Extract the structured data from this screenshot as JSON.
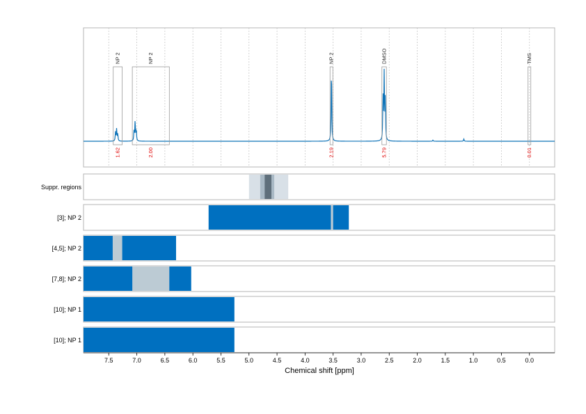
{
  "chart_data": {
    "type": "nmr_spectrum_with_region_tracks",
    "xlabel": "Chemical shift [ppm]",
    "xlim": [
      7.95,
      -0.45
    ],
    "xticks": [
      7.5,
      7.0,
      6.5,
      6.0,
      5.5,
      5.0,
      4.5,
      4.0,
      3.5,
      3.0,
      2.5,
      2.0,
      1.5,
      1.0,
      0.5,
      0.0
    ],
    "xtick_labels": [
      "7.5",
      "7.0",
      "6.5",
      "6.0",
      "5.5",
      "5.0",
      "4.5",
      "4.0",
      "3.5",
      "3.0",
      "2.5",
      "2.0",
      "1.5",
      "1.0",
      "0.5",
      "0.0"
    ],
    "grid": "vertical dashed",
    "colors": {
      "spectrum": "#0e73b8",
      "bar": "#0070c0",
      "light_region": "#bccbd4",
      "suppr_outer": "#d8e0e7",
      "suppr_mid": "#a9b9c5",
      "suppr_inner": "#5f6f7b",
      "integral_text": "#e00000"
    },
    "spectrum_peaks": [
      {
        "ppm": 7.38,
        "height": 0.12
      },
      {
        "ppm": 7.36,
        "height": 0.16
      },
      {
        "ppm": 7.34,
        "height": 0.1
      },
      {
        "ppm": 7.05,
        "height": 0.13
      },
      {
        "ppm": 7.03,
        "height": 0.27
      },
      {
        "ppm": 7.01,
        "height": 0.15
      },
      {
        "ppm": 3.53,
        "height": 1.0
      },
      {
        "ppm": 2.61,
        "height": 0.58
      },
      {
        "ppm": 2.59,
        "height": 0.88
      },
      {
        "ppm": 2.57,
        "height": 0.55
      },
      {
        "ppm": 1.17,
        "height": 0.03
      },
      {
        "ppm": 1.72,
        "height": 0.015
      }
    ],
    "annotations": [
      {
        "label": "NP 2",
        "ppm_from": 7.42,
        "ppm_to": 7.26,
        "integral": "1.62"
      },
      {
        "label": "NP 2",
        "ppm_from": 7.08,
        "ppm_to": 6.42,
        "integral": "2.00"
      },
      {
        "label": "NP 2",
        "ppm_from": 3.55,
        "ppm_to": 3.51,
        "integral": "2.19"
      },
      {
        "label": "DMSO",
        "ppm_from": 2.63,
        "ppm_to": 2.55,
        "integral": "5.79"
      },
      {
        "label": "TMS",
        "ppm_from": 0.02,
        "ppm_to": -0.02,
        "integral": "0.01"
      }
    ],
    "tracks": [
      {
        "label": "Suppr. regions",
        "regions": [
          {
            "from": 5.0,
            "to": 4.3,
            "shade": "outer"
          },
          {
            "from": 4.8,
            "to": 4.55,
            "shade": "mid"
          },
          {
            "from": 4.72,
            "to": 4.6,
            "shade": "inner"
          }
        ]
      },
      {
        "label": "[3]; NP 2",
        "regions": [
          {
            "from": 5.72,
            "to": 3.22,
            "shade": "bar"
          },
          {
            "from": 3.54,
            "to": 3.5,
            "shade": "light"
          }
        ]
      },
      {
        "label": "[4,5]; NP 2",
        "regions": [
          {
            "from": 7.95,
            "to": 6.3,
            "shade": "bar"
          },
          {
            "from": 7.43,
            "to": 7.26,
            "shade": "light"
          }
        ]
      },
      {
        "label": "[7,8]; NP 2",
        "regions": [
          {
            "from": 7.95,
            "to": 6.03,
            "shade": "bar"
          },
          {
            "from": 7.08,
            "to": 6.42,
            "shade": "light"
          }
        ]
      },
      {
        "label": "[10]; NP 1",
        "regions": [
          {
            "from": 7.95,
            "to": 5.26,
            "shade": "bar"
          }
        ]
      },
      {
        "label": "[10]; NP 1",
        "regions": [
          {
            "from": 7.95,
            "to": 5.26,
            "shade": "bar"
          }
        ]
      }
    ]
  }
}
